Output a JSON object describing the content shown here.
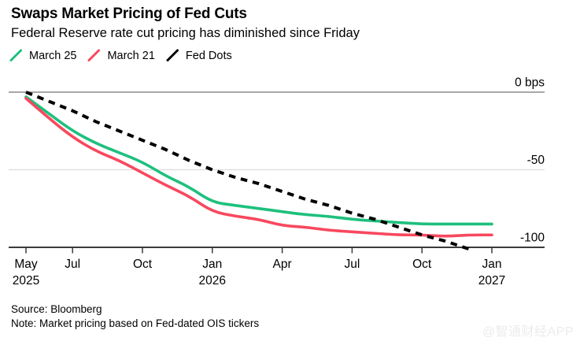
{
  "header": {
    "title": "Swaps Market Pricing of Fed Cuts",
    "subtitle": "Federal Reserve rate cut pricing has diminished since Friday"
  },
  "legend": {
    "items": [
      {
        "label": "March 25",
        "color": "#1ec07d"
      },
      {
        "label": "March 21",
        "color": "#f8485e"
      },
      {
        "label": "Fed Dots",
        "color": "#000000"
      }
    ]
  },
  "chart_data": {
    "type": "line",
    "title": "Swaps Market Pricing of Fed Cuts",
    "subtitle": "Federal Reserve rate cut pricing has diminished since Friday",
    "ylabel": "bps",
    "ylim": [
      -105,
      2
    ],
    "grid": "horizontal",
    "legend_position": "top-left",
    "x": [
      "May 2025",
      "Jun 2025",
      "Jul 2025",
      "Aug 2025",
      "Sep 2025",
      "Oct 2025",
      "Nov 2025",
      "Dec 2025",
      "Jan 2026",
      "Feb 2026",
      "Mar 2026",
      "Apr 2026",
      "May 2026",
      "Jun 2026",
      "Jul 2026",
      "Aug 2026",
      "Sep 2026",
      "Oct 2026",
      "Nov 2026",
      "Dec 2026",
      "Jan 2027"
    ],
    "series": [
      {
        "name": "March 25",
        "color": "#1ec07d",
        "style": "solid",
        "values": [
          -3,
          -14,
          -25,
          -33,
          -39,
          -45,
          -54,
          -61,
          -71,
          -73,
          -75,
          -77,
          -79,
          -80,
          -82,
          -83,
          -84,
          -85,
          -85,
          -85,
          -85
        ]
      },
      {
        "name": "March 21",
        "color": "#f8485e",
        "style": "solid",
        "values": [
          -4,
          -17,
          -29,
          -38,
          -44,
          -52,
          -60,
          -67,
          -77,
          -80,
          -82,
          -86,
          -87,
          -89,
          -90,
          -91,
          -92,
          -92,
          -93,
          -92,
          -92
        ]
      },
      {
        "name": "Fed Dots",
        "color": "#000000",
        "style": "dashed",
        "values": [
          0,
          -6,
          -12,
          -19,
          -25,
          -31,
          -37,
          -44,
          -50,
          -55,
          -59,
          -64,
          -69,
          -73,
          -78,
          -82,
          -87,
          -92,
          -96,
          -101,
          null
        ]
      }
    ],
    "y_ticks": [
      {
        "label": "0 bps",
        "value": 0
      },
      {
        "label": "-50",
        "value": -50
      },
      {
        "label": "-100",
        "value": -100
      }
    ],
    "x_ticks": [
      {
        "index": 0,
        "label": "May",
        "year": "2025"
      },
      {
        "index": 2,
        "label": "Jul"
      },
      {
        "index": 5,
        "label": "Oct"
      },
      {
        "index": 8,
        "label": "Jan",
        "year": "2026"
      },
      {
        "index": 11,
        "label": "Apr"
      },
      {
        "index": 14,
        "label": "Jul"
      },
      {
        "index": 17,
        "label": "Oct"
      },
      {
        "index": 20,
        "label": "Jan",
        "year": "2027"
      }
    ]
  },
  "footer": {
    "source": "Source: Bloomberg",
    "note": "Note: Market pricing based on Fed-dated OIS tickers",
    "watermark": "@智通财经APP"
  }
}
